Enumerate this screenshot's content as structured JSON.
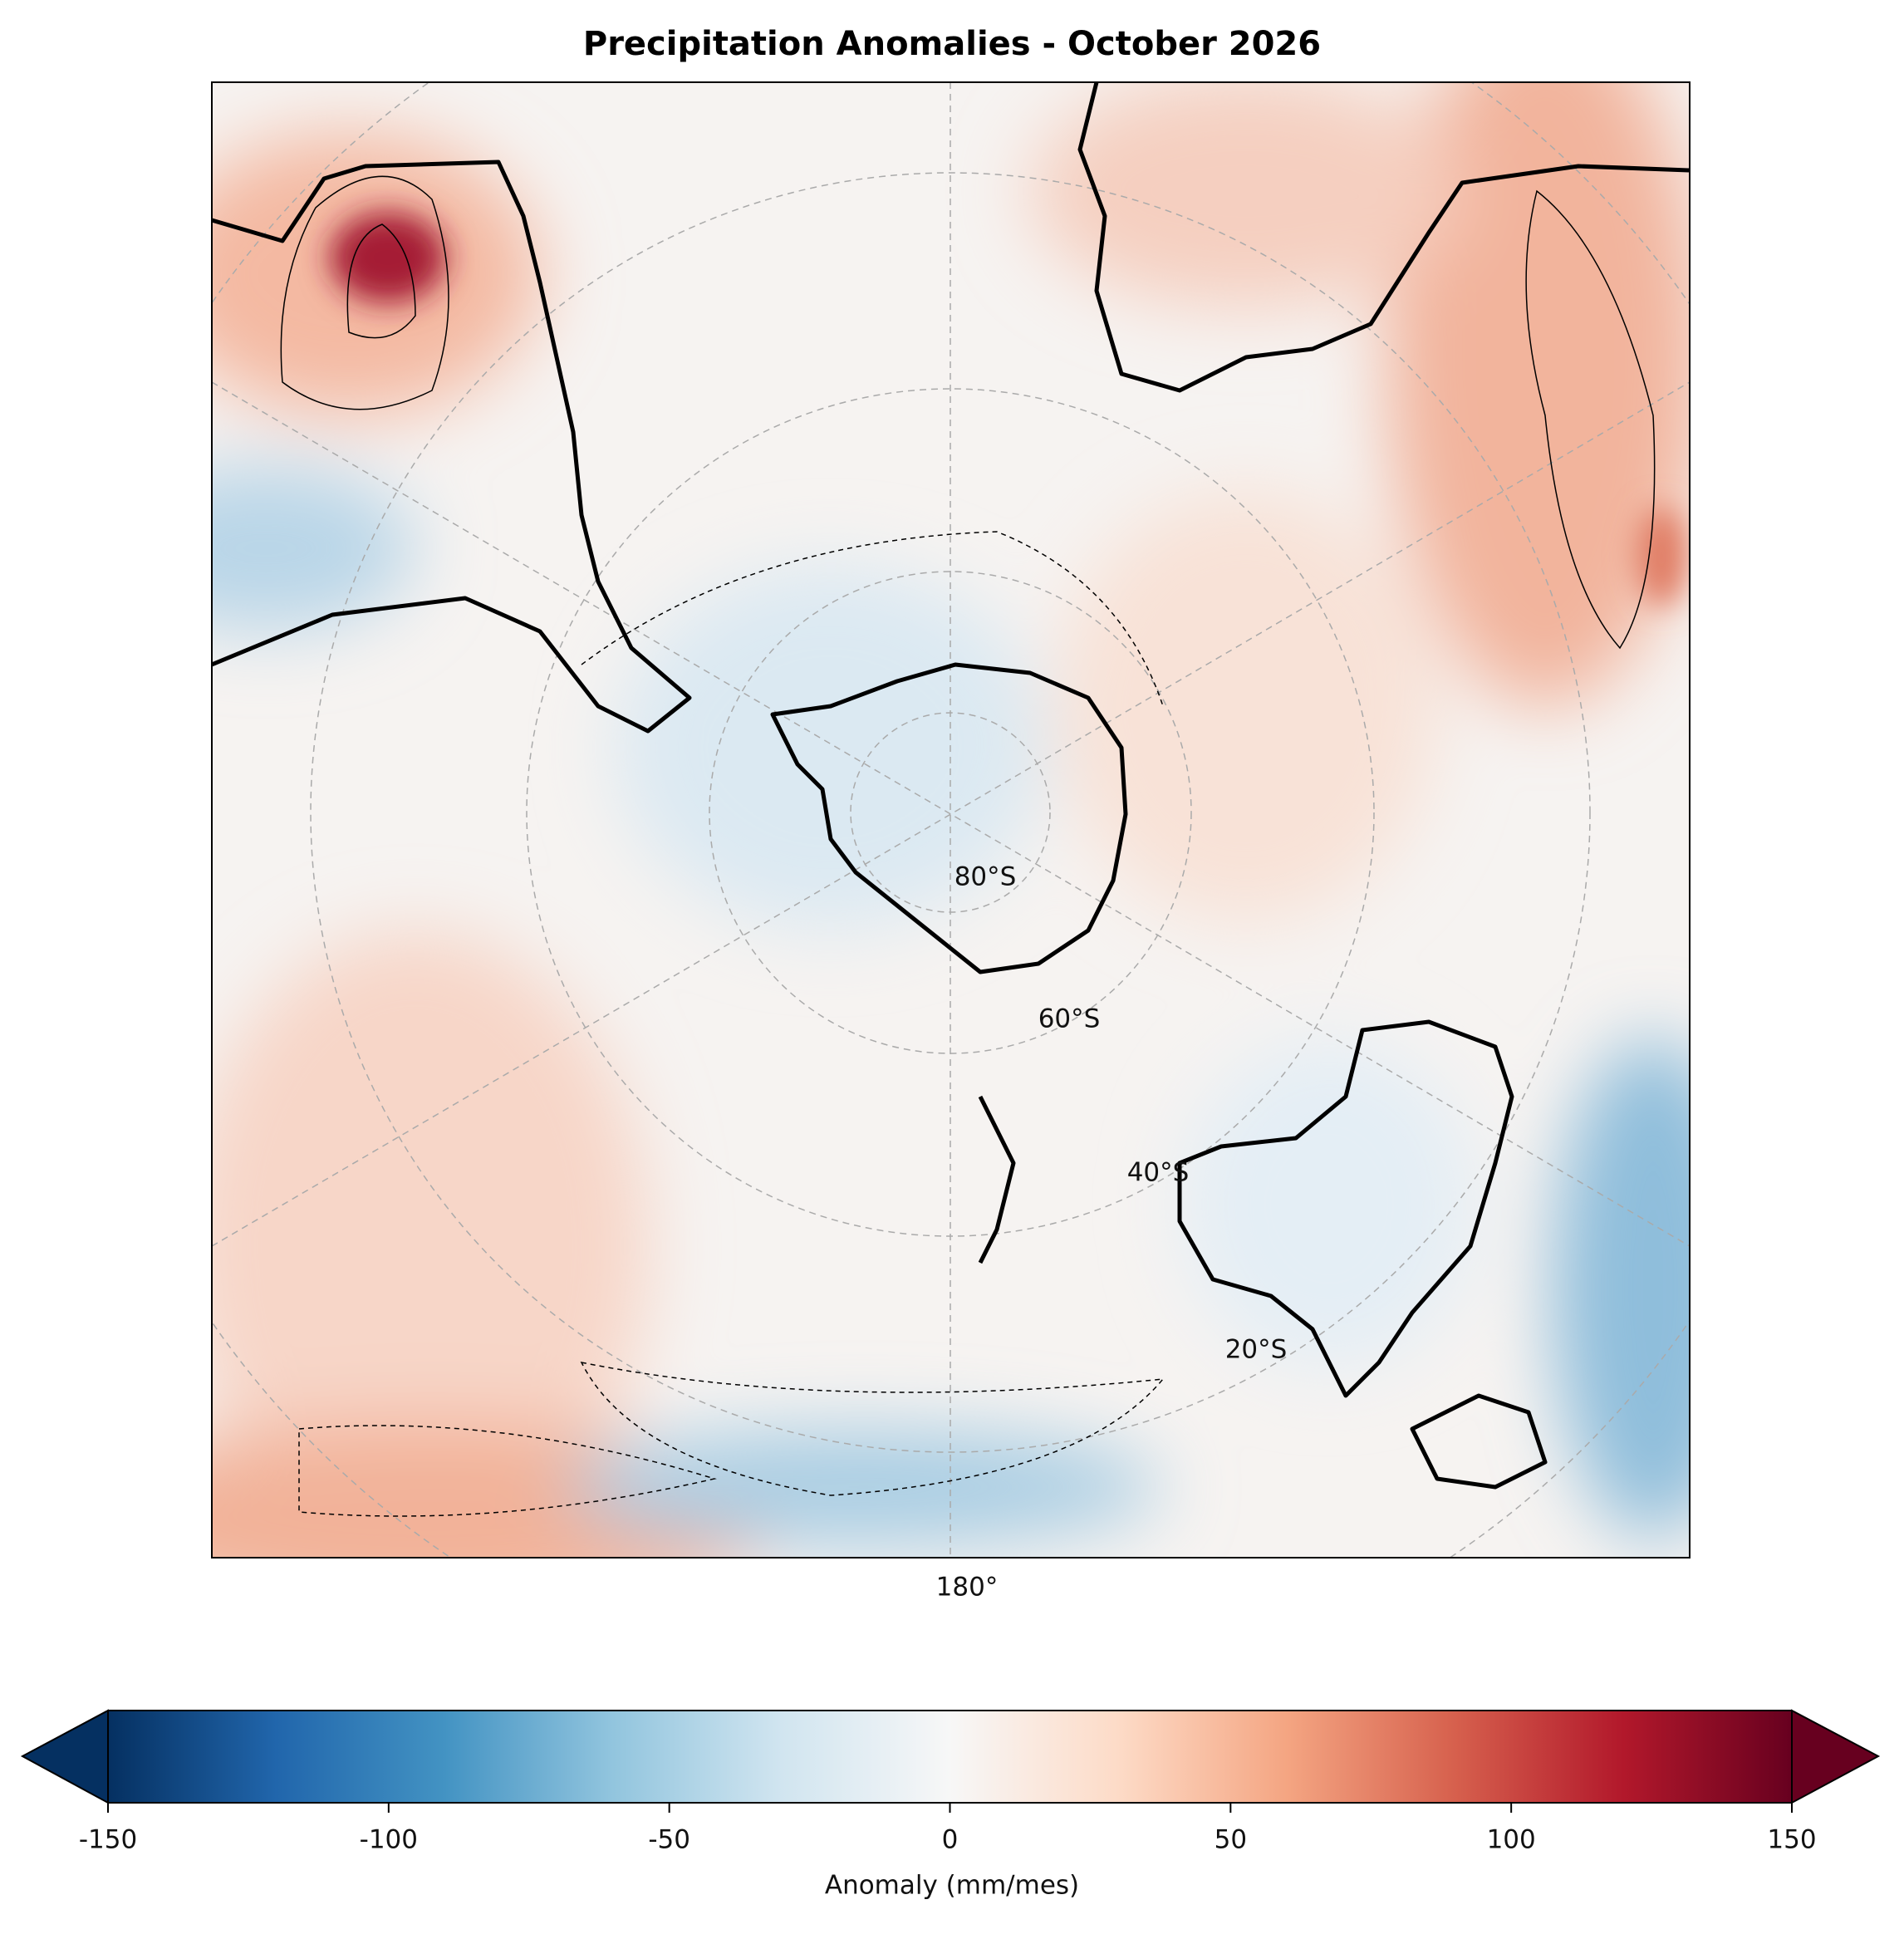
{
  "title": "Precipitation Anomalies - October 2026",
  "map": {
    "meridian_label": "180°",
    "parallel_labels": [
      "80°S",
      "60°S",
      "40°S",
      "20°S"
    ]
  },
  "colorbar": {
    "label": "Anomaly (mm/mes)",
    "lim": [
      -150,
      150
    ],
    "ticks": [
      -150,
      -100,
      -50,
      0,
      50,
      100,
      150
    ],
    "extend": "both",
    "colors": [
      "#053061",
      "#2166ac",
      "#4393c3",
      "#92c5de",
      "#d1e5f0",
      "#f7f7f7",
      "#fddbc7",
      "#f4a582",
      "#d6604d",
      "#b2182b",
      "#67001f"
    ]
  }
}
